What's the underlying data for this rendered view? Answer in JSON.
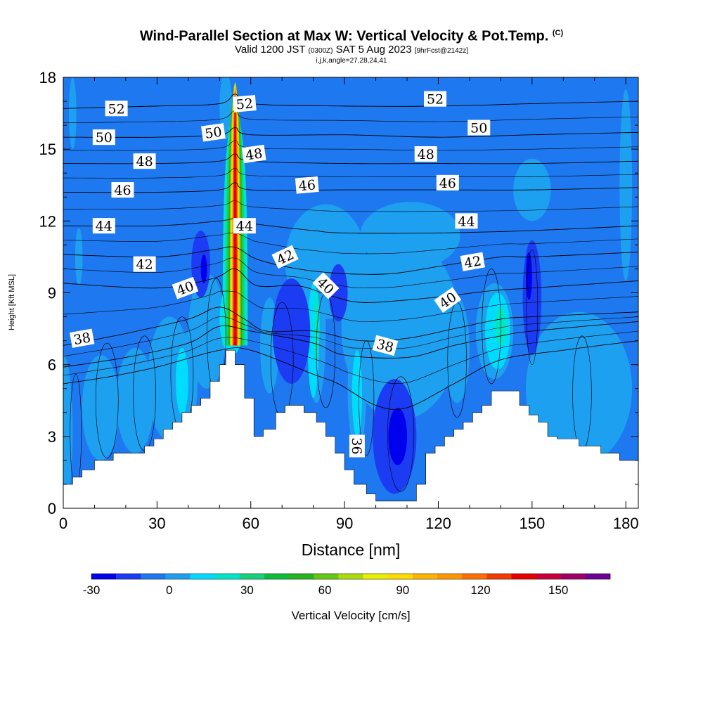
{
  "title": {
    "main": "Wind-Parallel Section at Max W: Vertical Velocity & Pot.Temp.",
    "copyright": "(C)",
    "valid_prefix": "Valid 1200 JST",
    "valid_utc": "(0300Z)",
    "valid_date": "SAT 5 Aug 2023",
    "forecast": "[9hrFcst@2142z]",
    "subtitle": "i,j,k,angle=27,28,24,41"
  },
  "chart_data": {
    "type": "heatmap",
    "xlabel": "Distance [nm]",
    "ylabel": "Height [Kft MSL]",
    "xlim": [
      0,
      184
    ],
    "ylim": [
      0,
      18
    ],
    "x_ticks": [
      0,
      30,
      60,
      90,
      120,
      150,
      180
    ],
    "y_ticks": [
      0,
      3,
      6,
      9,
      12,
      15,
      18
    ],
    "colorbar": {
      "label": "Vertical Velocity [cm/s]",
      "tick_labels": [
        -30,
        0,
        30,
        60,
        90,
        120,
        150
      ],
      "range": [
        -30,
        170
      ],
      "step": 10,
      "colors": [
        "#0000ee",
        "#1c3cf4",
        "#1e78f0",
        "#1ea0f0",
        "#00dcff",
        "#00e6c8",
        "#14d278",
        "#0abe3c",
        "#28b41e",
        "#64c814",
        "#aadc0a",
        "#e6f000",
        "#ffdc00",
        "#ffb400",
        "#ff9600",
        "#ff6e00",
        "#f03c00",
        "#e60000",
        "#c8003c",
        "#a00064",
        "#6e0096"
      ]
    },
    "background_value": -4,
    "terrain": [
      [
        0,
        1.0
      ],
      [
        3,
        1.0
      ],
      [
        3,
        1.3
      ],
      [
        6,
        1.3
      ],
      [
        6,
        1.6
      ],
      [
        10,
        1.6
      ],
      [
        10,
        2.0
      ],
      [
        16,
        2.0
      ],
      [
        16,
        2.3
      ],
      [
        26,
        2.3
      ],
      [
        26,
        2.6
      ],
      [
        29,
        2.6
      ],
      [
        29,
        2.9
      ],
      [
        32,
        2.9
      ],
      [
        32,
        3.3
      ],
      [
        35,
        3.3
      ],
      [
        35,
        3.6
      ],
      [
        38,
        3.6
      ],
      [
        38,
        4.0
      ],
      [
        41,
        4.0
      ],
      [
        41,
        4.3
      ],
      [
        44,
        4.3
      ],
      [
        44,
        4.6
      ],
      [
        47,
        4.6
      ],
      [
        47,
        5.3
      ],
      [
        50,
        5.3
      ],
      [
        50,
        6.0
      ],
      [
        52,
        6.0
      ],
      [
        52,
        6.6
      ],
      [
        55,
        6.6
      ],
      [
        55,
        6.0
      ],
      [
        58,
        6.0
      ],
      [
        58,
        4.6
      ],
      [
        61,
        4.6
      ],
      [
        61,
        3.0
      ],
      [
        64,
        3.0
      ],
      [
        64,
        3.3
      ],
      [
        68,
        3.3
      ],
      [
        68,
        4.0
      ],
      [
        71,
        4.0
      ],
      [
        71,
        4.3
      ],
      [
        77,
        4.3
      ],
      [
        77,
        4.0
      ],
      [
        81,
        4.0
      ],
      [
        81,
        3.6
      ],
      [
        84,
        3.6
      ],
      [
        84,
        3.0
      ],
      [
        87,
        3.0
      ],
      [
        87,
        2.3
      ],
      [
        90,
        2.3
      ],
      [
        90,
        1.6
      ],
      [
        93,
        1.6
      ],
      [
        93,
        1.0
      ],
      [
        97,
        1.0
      ],
      [
        97,
        0.6
      ],
      [
        100,
        0.6
      ],
      [
        100,
        0.3
      ],
      [
        113,
        0.3
      ],
      [
        113,
        1.0
      ],
      [
        116,
        1.0
      ],
      [
        116,
        2.3
      ],
      [
        119,
        2.3
      ],
      [
        119,
        2.6
      ],
      [
        122,
        2.6
      ],
      [
        122,
        3.0
      ],
      [
        125,
        3.0
      ],
      [
        125,
        3.3
      ],
      [
        128,
        3.3
      ],
      [
        128,
        3.6
      ],
      [
        131,
        3.6
      ],
      [
        131,
        4.0
      ],
      [
        134,
        4.0
      ],
      [
        134,
        4.3
      ],
      [
        137,
        4.3
      ],
      [
        137,
        4.9
      ],
      [
        146,
        4.9
      ],
      [
        146,
        4.3
      ],
      [
        149,
        4.3
      ],
      [
        149,
        3.9
      ],
      [
        152,
        3.9
      ],
      [
        152,
        3.6
      ],
      [
        155,
        3.6
      ],
      [
        155,
        3.0
      ],
      [
        158,
        3.0
      ],
      [
        158,
        2.9
      ],
      [
        165,
        2.9
      ],
      [
        165,
        2.6
      ],
      [
        172,
        2.6
      ],
      [
        172,
        2.3
      ],
      [
        178,
        2.3
      ],
      [
        178,
        2.0
      ],
      [
        184,
        2.0
      ]
    ],
    "velocity_regions": [
      {
        "value": 2,
        "x": 0,
        "y": 3.2,
        "rx": 3,
        "ry": 3.2
      },
      {
        "value": 2,
        "x": 3,
        "y": 16.5,
        "rx": 1.2,
        "ry": 1.5
      },
      {
        "value": 2,
        "x": 5,
        "y": 10.5,
        "rx": 1.2,
        "ry": 1.2
      },
      {
        "value": 2,
        "x": 12,
        "y": 4.2,
        "rx": 6,
        "ry": 2.2
      },
      {
        "value": 2,
        "x": 23,
        "y": 4.5,
        "rx": 6,
        "ry": 2.2
      },
      {
        "value": 2,
        "x": 34,
        "y": 5.4,
        "rx": 7,
        "ry": 2.6
      },
      {
        "value": 2,
        "x": 46,
        "y": 7.4,
        "rx": 6,
        "ry": 2.4
      },
      {
        "value": 2,
        "x": 52,
        "y": 16.8,
        "rx": 2,
        "ry": 1.4
      },
      {
        "value": 2,
        "x": 84,
        "y": 10.3,
        "rx": 13,
        "ry": 2.4
      },
      {
        "value": 2,
        "x": 108,
        "y": 7.5,
        "rx": 19,
        "ry": 3.8
      },
      {
        "value": 2,
        "x": 111,
        "y": 11.4,
        "rx": 16,
        "ry": 1.4
      },
      {
        "value": 2,
        "x": 150,
        "y": 13.3,
        "rx": 6,
        "ry": 1.3
      },
      {
        "value": 2,
        "x": 165,
        "y": 5.0,
        "rx": 17,
        "ry": 3.2
      },
      {
        "value": 2,
        "x": 180,
        "y": 13.5,
        "rx": 2,
        "ry": 4.0
      },
      {
        "value": 8,
        "x": 24,
        "y": 4.4,
        "rx": 3,
        "ry": 1.8
      },
      {
        "value": 8,
        "x": 40,
        "y": 5.4,
        "rx": 3,
        "ry": 2.0
      },
      {
        "value": 8,
        "x": 66,
        "y": 6.8,
        "rx": 3,
        "ry": 2.0
      },
      {
        "value": 8,
        "x": 81,
        "y": 7.4,
        "rx": 3,
        "ry": 3.0
      },
      {
        "value": 8,
        "x": 94,
        "y": 5.0,
        "rx": 3,
        "ry": 2.6
      },
      {
        "value": 8,
        "x": 126,
        "y": 6.6,
        "rx": 4,
        "ry": 2.2
      },
      {
        "value": 8,
        "x": 138,
        "y": 7.4,
        "rx": 6,
        "ry": 2.0
      },
      {
        "value": 8,
        "x": 174,
        "y": 4.4,
        "rx": 4,
        "ry": 1.4
      },
      {
        "value": 18,
        "x": 38,
        "y": 5.3,
        "rx": 2,
        "ry": 1.4
      },
      {
        "value": 18,
        "x": 54,
        "y": 7.9,
        "rx": 4,
        "ry": 1.5
      },
      {
        "value": 18,
        "x": 80,
        "y": 7.0,
        "rx": 1.8,
        "ry": 2.4
      },
      {
        "value": 18,
        "x": 94,
        "y": 4.8,
        "rx": 1.6,
        "ry": 1.8
      },
      {
        "value": 18,
        "x": 139,
        "y": 7.4,
        "rx": 4,
        "ry": 1.6
      },
      {
        "value": 28,
        "x": 81,
        "y": 7.6,
        "rx": 1.0,
        "ry": 1.5
      },
      {
        "value": 28,
        "x": 140,
        "y": 7.6,
        "rx": 2,
        "ry": 0.8
      },
      {
        "value": -14,
        "x": 44,
        "y": 10.2,
        "rx": 3,
        "ry": 1.4
      },
      {
        "value": -14,
        "x": 73,
        "y": 7.4,
        "rx": 6,
        "ry": 2.2
      },
      {
        "value": -14,
        "x": 88,
        "y": 9.0,
        "rx": 3,
        "ry": 1.2
      },
      {
        "value": -14,
        "x": 106,
        "y": 3.0,
        "rx": 7,
        "ry": 2.4
      },
      {
        "value": -14,
        "x": 150,
        "y": 8.8,
        "rx": 3,
        "ry": 2.4
      },
      {
        "value": -22,
        "x": 45,
        "y": 10.0,
        "rx": 1.0,
        "ry": 0.6
      },
      {
        "value": -22,
        "x": 107,
        "y": 3.0,
        "rx": 3,
        "ry": 1.2
      },
      {
        "value": -22,
        "x": 149,
        "y": 9.7,
        "rx": 1.0,
        "ry": 1.0
      }
    ],
    "updraft_core": {
      "x_center": 55,
      "base": 6.8,
      "top": 18,
      "layers": [
        {
          "value": 22,
          "half_width": 4.0,
          "top": 16.0
        },
        {
          "value": 38,
          "half_width": 3.0,
          "top": 16.5
        },
        {
          "value": 55,
          "half_width": 2.3,
          "top": 17.0
        },
        {
          "value": 75,
          "half_width": 1.7,
          "top": 17.2
        },
        {
          "value": 95,
          "half_width": 1.3,
          "top": 17.2
        },
        {
          "value": 125,
          "half_width": 0.9,
          "top": 17.0
        },
        {
          "value": 145,
          "half_width": 0.5,
          "top": 16.6
        }
      ]
    },
    "isentropes": [
      {
        "level": 52,
        "xs": [
          0,
          30,
          50,
          55,
          60,
          90,
          120,
          150,
          184
        ],
        "ys": [
          16.7,
          16.8,
          16.9,
          17.3,
          16.9,
          16.8,
          16.8,
          16.9,
          17.0
        ]
      },
      {
        "level": 50,
        "xs": [
          0,
          30,
          50,
          55,
          60,
          90,
          120,
          150,
          184
        ],
        "ys": [
          15.5,
          15.5,
          15.6,
          15.9,
          15.6,
          15.6,
          15.5,
          15.6,
          15.7
        ]
      },
      {
        "level": 48,
        "xs": [
          0,
          30,
          50,
          55,
          60,
          90,
          120,
          150,
          184
        ],
        "ys": [
          14.4,
          14.4,
          14.5,
          14.8,
          14.5,
          14.4,
          14.4,
          14.4,
          14.5
        ]
      },
      {
        "level": 46,
        "xs": [
          0,
          30,
          50,
          55,
          60,
          90,
          120,
          150,
          184
        ],
        "ys": [
          13.2,
          13.2,
          13.3,
          13.6,
          13.3,
          13.3,
          13.3,
          13.3,
          13.4
        ]
      },
      {
        "level": 44,
        "xs": [
          0,
          30,
          50,
          55,
          60,
          80,
          90,
          120,
          150,
          184
        ],
        "ys": [
          11.8,
          11.8,
          12.0,
          12.1,
          11.9,
          11.6,
          11.5,
          11.5,
          11.6,
          11.8
        ]
      },
      {
        "level": 42,
        "xs": [
          0,
          30,
          48,
          55,
          62,
          75,
          90,
          105,
          120,
          140,
          150,
          184
        ],
        "ys": [
          10.6,
          10.5,
          10.8,
          10.9,
          10.4,
          10.0,
          9.8,
          9.8,
          10.1,
          10.5,
          10.5,
          10.7
        ]
      },
      {
        "level": 40,
        "xs": [
          0,
          30,
          48,
          55,
          62,
          75,
          85,
          95,
          110,
          125,
          138,
          150,
          184
        ],
        "ys": [
          9.4,
          9.2,
          9.6,
          10.0,
          9.3,
          9.3,
          8.9,
          8.6,
          8.7,
          8.9,
          9.1,
          9.2,
          9.5
        ]
      },
      {
        "level": 38,
        "xs": [
          0,
          20,
          40,
          50,
          58,
          65,
          80,
          95,
          110,
          125,
          140,
          150,
          184
        ],
        "ys": [
          6.8,
          7.3,
          7.9,
          8.4,
          7.9,
          7.4,
          7.4,
          7.0,
          7.1,
          7.5,
          7.9,
          8.0,
          8.2
        ]
      },
      {
        "level": 37,
        "xs": [
          0,
          20,
          40,
          50,
          60,
          80,
          90,
          110,
          125,
          140,
          150,
          184
        ],
        "ys": [
          5.9,
          6.3,
          6.9,
          7.6,
          7.4,
          6.9,
          6.4,
          6.3,
          6.8,
          7.2,
          7.4,
          7.8
        ]
      },
      {
        "level": 36,
        "xs": [
          0,
          15,
          30,
          50,
          60,
          80,
          88,
          100,
          110,
          125,
          140,
          160,
          184
        ],
        "ys": [
          5.2,
          5.5,
          5.9,
          6.6,
          6.6,
          5.6,
          5.2,
          4.3,
          4.2,
          5.2,
          6.2,
          6.6,
          7.0
        ]
      }
    ],
    "contour_labels": [
      {
        "text": "52",
        "x": 17,
        "y": 16.7,
        "angle": 0
      },
      {
        "text": "52",
        "x": 58,
        "y": 16.9,
        "angle": -5
      },
      {
        "text": "52",
        "x": 119,
        "y": 17.1,
        "angle": 0
      },
      {
        "text": "50",
        "x": 13,
        "y": 15.5,
        "angle": 0
      },
      {
        "text": "50",
        "x": 48,
        "y": 15.7,
        "angle": -8
      },
      {
        "text": "50",
        "x": 133,
        "y": 15.9,
        "angle": 0
      },
      {
        "text": "48",
        "x": 26,
        "y": 14.5,
        "angle": 0
      },
      {
        "text": "48",
        "x": 61,
        "y": 14.8,
        "angle": -8
      },
      {
        "text": "48",
        "x": 116,
        "y": 14.8,
        "angle": 0
      },
      {
        "text": "46",
        "x": 19,
        "y": 13.3,
        "angle": 0
      },
      {
        "text": "46",
        "x": 78,
        "y": 13.5,
        "angle": -5
      },
      {
        "text": "46",
        "x": 123,
        "y": 13.6,
        "angle": 0
      },
      {
        "text": "44",
        "x": 13,
        "y": 11.8,
        "angle": 0
      },
      {
        "text": "44",
        "x": 58,
        "y": 11.8,
        "angle": 0
      },
      {
        "text": "44",
        "x": 129,
        "y": 12.0,
        "angle": 0
      },
      {
        "text": "42",
        "x": 26,
        "y": 10.2,
        "angle": 0
      },
      {
        "text": "42",
        "x": 71,
        "y": 10.5,
        "angle": -25
      },
      {
        "text": "42",
        "x": 131,
        "y": 10.3,
        "angle": -10
      },
      {
        "text": "40",
        "x": 39,
        "y": 9.2,
        "angle": -20
      },
      {
        "text": "40",
        "x": 84,
        "y": 9.3,
        "angle": 45
      },
      {
        "text": "40",
        "x": 123,
        "y": 8.7,
        "angle": -35
      },
      {
        "text": "38",
        "x": 6,
        "y": 7.1,
        "angle": -10
      },
      {
        "text": "38",
        "x": 103,
        "y": 6.8,
        "angle": 15
      },
      {
        "text": "36",
        "x": 94,
        "y": 2.6,
        "angle": 90
      }
    ]
  }
}
